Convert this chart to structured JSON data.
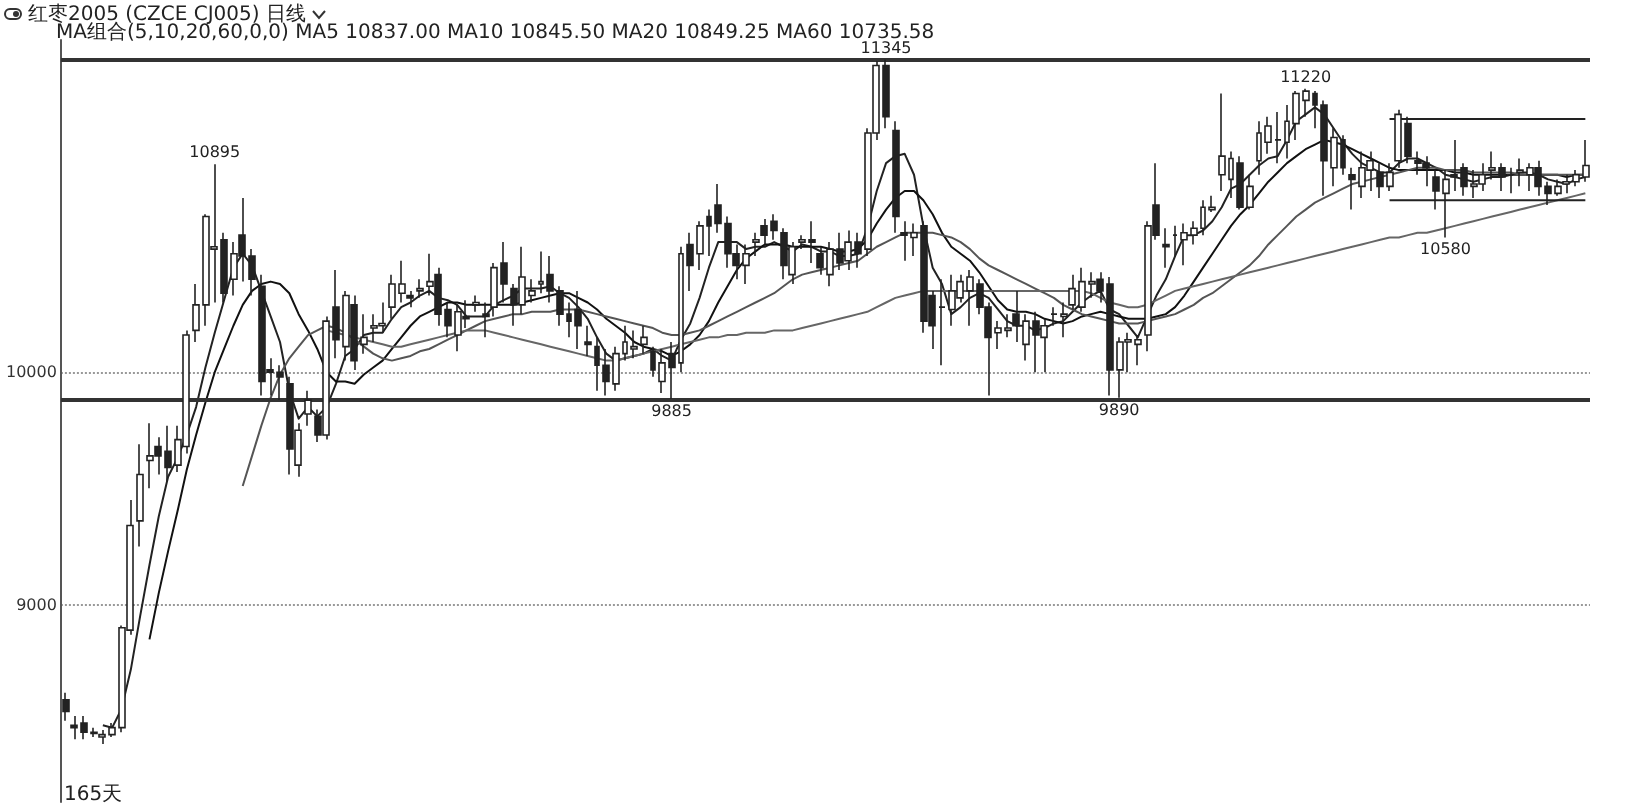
{
  "chart_data": {
    "type": "candlestick",
    "title": "红枣2005 (CZCE CJ005)  日线",
    "subtitle": "MA组合(5,10,20,60,0,0)  MA5 10837.00  MA10 10845.50  MA20 10849.25  MA60 10735.58",
    "categories": [
      null,
      null,
      null,
      null,
      null,
      null,
      null,
      null,
      null,
      null,
      null,
      null,
      null,
      null,
      null,
      null,
      null,
      null,
      null,
      null,
      null,
      null,
      null,
      null,
      null,
      null,
      null,
      null,
      null,
      null,
      null,
      null,
      null,
      null,
      null,
      null,
      null,
      null,
      null,
      null,
      null,
      null,
      null,
      null,
      null,
      null,
      null,
      null,
      null,
      null,
      null,
      null,
      null,
      null,
      null,
      null,
      null,
      null,
      null,
      null,
      null,
      null,
      null,
      null,
      null,
      null,
      null,
      null,
      null,
      null,
      null,
      null,
      null,
      null,
      null,
      null,
      null,
      null,
      null,
      null,
      null,
      null,
      null,
      null,
      null,
      null,
      null,
      null,
      null,
      null,
      null,
      null,
      null,
      null,
      null,
      null,
      null,
      null,
      null,
      null,
      null,
      null,
      null,
      null,
      null,
      null,
      null,
      null,
      null,
      null,
      null,
      null,
      null,
      null,
      null,
      null,
      null,
      null,
      null,
      null,
      null,
      null,
      null,
      null,
      null,
      null,
      null,
      null,
      null,
      null,
      null,
      null,
      null,
      null,
      null,
      null,
      null,
      null,
      null,
      null,
      null,
      null,
      null,
      null,
      null,
      null,
      null,
      null,
      null,
      null,
      null,
      null,
      null,
      null,
      null,
      null,
      null,
      null,
      null,
      null,
      null,
      null,
      null,
      null
    ],
    "color": "#222222",
    "ohlc": [
      [
        8590,
        8620,
        8500,
        8540
      ],
      [
        8480,
        8520,
        8420,
        8470
      ],
      [
        8490,
        8520,
        8420,
        8450
      ],
      [
        8450,
        8470,
        8430,
        8445
      ],
      [
        8430,
        8460,
        8400,
        8440
      ],
      [
        8440,
        8490,
        8430,
        8470
      ],
      [
        8470,
        8910,
        8450,
        8900
      ],
      [
        8890,
        9450,
        8870,
        9340
      ],
      [
        9360,
        9690,
        9250,
        9560
      ],
      [
        9620,
        9780,
        9500,
        9640
      ],
      [
        9680,
        9720,
        9560,
        9640
      ],
      [
        9660,
        9770,
        9530,
        9590
      ],
      [
        9600,
        9770,
        9570,
        9710
      ],
      [
        9680,
        10180,
        9650,
        10160
      ],
      [
        10180,
        10380,
        10130,
        10290
      ],
      [
        10290,
        10680,
        10200,
        10670
      ],
      [
        10530,
        10895,
        10300,
        10540
      ],
      [
        10570,
        10600,
        10300,
        10340
      ],
      [
        10400,
        10560,
        10330,
        10510
      ],
      [
        10590,
        10750,
        10390,
        10500
      ],
      [
        10500,
        10530,
        10330,
        10400
      ],
      [
        10370,
        10420,
        9900,
        9960
      ],
      [
        10010,
        10060,
        9900,
        10000
      ],
      [
        10000,
        10030,
        9880,
        9980
      ],
      [
        9950,
        9980,
        9560,
        9670
      ],
      [
        9600,
        9780,
        9550,
        9750
      ],
      [
        9820,
        9920,
        9770,
        9880
      ],
      [
        9810,
        9840,
        9700,
        9730
      ],
      [
        9730,
        10240,
        9710,
        10220
      ],
      [
        10280,
        10440,
        10060,
        10140
      ],
      [
        10110,
        10350,
        10050,
        10330
      ],
      [
        10290,
        10330,
        10010,
        10050
      ],
      [
        10120,
        10250,
        10080,
        10150
      ],
      [
        10190,
        10250,
        10130,
        10200
      ],
      [
        10200,
        10300,
        10170,
        10210
      ],
      [
        10280,
        10420,
        10230,
        10380
      ],
      [
        10340,
        10480,
        10300,
        10380
      ],
      [
        10330,
        10350,
        10280,
        10320
      ],
      [
        10350,
        10400,
        10320,
        10360
      ],
      [
        10370,
        10510,
        10330,
        10390
      ],
      [
        10420,
        10450,
        10200,
        10250
      ],
      [
        10270,
        10300,
        10150,
        10200
      ],
      [
        10160,
        10290,
        10090,
        10260
      ],
      [
        10240,
        10310,
        10190,
        10230
      ],
      [
        10290,
        10330,
        10260,
        10300
      ],
      [
        10250,
        10300,
        10150,
        10240
      ],
      [
        10280,
        10470,
        10240,
        10450
      ],
      [
        10470,
        10560,
        10300,
        10380
      ],
      [
        10360,
        10380,
        10200,
        10290
      ],
      [
        10290,
        10540,
        10250,
        10410
      ],
      [
        10330,
        10400,
        10300,
        10350
      ],
      [
        10380,
        10520,
        10340,
        10390
      ],
      [
        10420,
        10500,
        10300,
        10350
      ],
      [
        10350,
        10370,
        10200,
        10250
      ],
      [
        10250,
        10300,
        10150,
        10220
      ],
      [
        10270,
        10350,
        10100,
        10200
      ],
      [
        10130,
        10200,
        10070,
        10120
      ],
      [
        10110,
        10150,
        9920,
        10030
      ],
      [
        10030,
        10100,
        9900,
        9960
      ],
      [
        9950,
        10110,
        9920,
        10080
      ],
      [
        10080,
        10200,
        10050,
        10130
      ],
      [
        10100,
        10180,
        10060,
        10110
      ],
      [
        10120,
        10200,
        10080,
        10150
      ],
      [
        10090,
        10110,
        9980,
        10010
      ],
      [
        9960,
        10100,
        9910,
        10040
      ],
      [
        10080,
        10130,
        9885,
        10020
      ],
      [
        10040,
        10540,
        10000,
        10510
      ],
      [
        10550,
        10600,
        10350,
        10460
      ],
      [
        10510,
        10650,
        10440,
        10630
      ],
      [
        10670,
        10700,
        10500,
        10630
      ],
      [
        10720,
        10810,
        10600,
        10640
      ],
      [
        10640,
        10670,
        10450,
        10510
      ],
      [
        10510,
        10550,
        10400,
        10460
      ],
      [
        10460,
        10550,
        10380,
        10510
      ],
      [
        10560,
        10600,
        10500,
        10570
      ],
      [
        10630,
        10660,
        10550,
        10590
      ],
      [
        10650,
        10680,
        10570,
        10610
      ],
      [
        10600,
        10620,
        10400,
        10460
      ],
      [
        10420,
        10560,
        10380,
        10540
      ],
      [
        10560,
        10590,
        10530,
        10570
      ],
      [
        10570,
        10650,
        10470,
        10560
      ],
      [
        10510,
        10540,
        10420,
        10450
      ],
      [
        10420,
        10560,
        10370,
        10530
      ],
      [
        10530,
        10600,
        10440,
        10470
      ],
      [
        10480,
        10610,
        10440,
        10560
      ],
      [
        10560,
        10600,
        10450,
        10510
      ],
      [
        10530,
        11050,
        10500,
        11030
      ],
      [
        11030,
        11340,
        11000,
        11320
      ],
      [
        11320,
        11345,
        11050,
        11100
      ],
      [
        11040,
        11080,
        10600,
        10670
      ],
      [
        10600,
        10650,
        10480,
        10590
      ],
      [
        10580,
        10640,
        10500,
        10600
      ],
      [
        10630,
        10650,
        10170,
        10220
      ],
      [
        10330,
        10350,
        10100,
        10200
      ],
      [
        10280,
        10400,
        10030,
        10280
      ],
      [
        10270,
        10420,
        10200,
        10350
      ],
      [
        10320,
        10420,
        10300,
        10390
      ],
      [
        10350,
        10440,
        10200,
        10410
      ],
      [
        10380,
        10400,
        10250,
        10280
      ],
      [
        10280,
        10300,
        9900,
        10150
      ],
      [
        10170,
        10220,
        10100,
        10190
      ],
      [
        10180,
        10250,
        10150,
        10190
      ],
      [
        10250,
        10350,
        10130,
        10200
      ],
      [
        10120,
        10250,
        10050,
        10220
      ],
      [
        10220,
        10260,
        10000,
        10160
      ],
      [
        10150,
        10230,
        10000,
        10200
      ],
      [
        10250,
        10280,
        10200,
        10250
      ],
      [
        10240,
        10300,
        10150,
        10250
      ],
      [
        10290,
        10420,
        10270,
        10360
      ],
      [
        10280,
        10450,
        10260,
        10390
      ],
      [
        10380,
        10430,
        10320,
        10390
      ],
      [
        10400,
        10430,
        10300,
        10350
      ],
      [
        10380,
        10410,
        9900,
        10010
      ],
      [
        10010,
        10150,
        9890,
        10130
      ],
      [
        10130,
        10170,
        10000,
        10140
      ],
      [
        10120,
        10160,
        10030,
        10140
      ],
      [
        10160,
        10650,
        10090,
        10630
      ],
      [
        10720,
        10900,
        10570,
        10590
      ],
      [
        10550,
        10620,
        10450,
        10540
      ],
      [
        10590,
        10630,
        10500,
        10590
      ],
      [
        10570,
        10640,
        10460,
        10600
      ],
      [
        10590,
        10650,
        10550,
        10620
      ],
      [
        10620,
        10740,
        10590,
        10710
      ],
      [
        10700,
        10760,
        10690,
        10710
      ],
      [
        10850,
        11200,
        10780,
        10930
      ],
      [
        10830,
        10950,
        10750,
        10920
      ],
      [
        10900,
        10930,
        10700,
        10710
      ],
      [
        10710,
        10850,
        10700,
        10800
      ],
      [
        10910,
        11080,
        10850,
        11030
      ],
      [
        10990,
        11100,
        10940,
        11060
      ],
      [
        11000,
        11120,
        10900,
        11000
      ],
      [
        10990,
        11150,
        10920,
        11080
      ],
      [
        11070,
        11210,
        11000,
        11200
      ],
      [
        11170,
        11220,
        11100,
        11210
      ],
      [
        11200,
        11210,
        11050,
        11150
      ],
      [
        11150,
        11170,
        10760,
        10910
      ],
      [
        10880,
        11050,
        10800,
        11010
      ],
      [
        11000,
        11020,
        10850,
        10880
      ],
      [
        10850,
        10880,
        10700,
        10830
      ],
      [
        10800,
        10950,
        10750,
        10880
      ],
      [
        10870,
        10950,
        10780,
        10910
      ],
      [
        10860,
        10900,
        10750,
        10800
      ],
      [
        10800,
        10900,
        10780,
        10860
      ],
      [
        10910,
        11130,
        10880,
        11110
      ],
      [
        11070,
        11100,
        10900,
        10930
      ],
      [
        10910,
        10950,
        10850,
        10900
      ],
      [
        10900,
        10930,
        10800,
        10880
      ],
      [
        10840,
        10870,
        10700,
        10780
      ],
      [
        10770,
        10870,
        10580,
        10830
      ],
      [
        10850,
        11000,
        10780,
        10840
      ],
      [
        10880,
        10900,
        10760,
        10800
      ],
      [
        10800,
        10870,
        10750,
        10810
      ],
      [
        10810,
        10900,
        10780,
        10850
      ],
      [
        10870,
        10950,
        10830,
        10880
      ],
      [
        10880,
        10900,
        10780,
        10840
      ],
      [
        10850,
        10880,
        10770,
        10850
      ],
      [
        10860,
        10920,
        10800,
        10870
      ],
      [
        10850,
        10900,
        10780,
        10880
      ],
      [
        10880,
        10910,
        10760,
        10800
      ],
      [
        10800,
        10820,
        10720,
        10770
      ],
      [
        10770,
        10830,
        10760,
        10800
      ],
      [
        10810,
        10850,
        10770,
        10820
      ],
      [
        10820,
        10870,
        10800,
        10850
      ],
      [
        10840,
        11000,
        10820,
        10890
      ]
    ],
    "series": [
      {
        "type": "line",
        "color": "#222222",
        "values": [
          null,
          null,
          null,
          null,
          8480,
          8470,
          8550,
          8720,
          8950,
          9170,
          9380,
          9550,
          9630,
          9730,
          9850,
          10020,
          10170,
          10310,
          10450,
          10510,
          10460,
          10350,
          10240,
          10130,
          9920,
          9800,
          9850,
          9810,
          9850,
          9950,
          10070,
          10100,
          10160,
          10170,
          10170,
          10230,
          10280,
          10300,
          10330,
          10350,
          10320,
          10310,
          10290,
          10240,
          10240,
          10240,
          10290,
          10310,
          10330,
          10360,
          10360,
          10360,
          10370,
          10340,
          10320,
          10280,
          10230,
          10150,
          10080,
          10050,
          10060,
          10070,
          10080,
          10100,
          10070,
          10050,
          10140,
          10210,
          10320,
          10450,
          10560,
          10560,
          10560,
          10530,
          10540,
          10540,
          10560,
          10540,
          10520,
          10550,
          10540,
          10520,
          10520,
          10500,
          10500,
          10510,
          10620,
          10780,
          10900,
          10930,
          10940,
          10850,
          10630,
          10450,
          10380,
          10250,
          10280,
          10320,
          10340,
          10320,
          10270,
          10220,
          10200,
          10200,
          10180,
          10190,
          10210,
          10220,
          10260,
          10300,
          10330,
          10350,
          10270,
          10250,
          10200,
          10150,
          10240,
          10330,
          10400,
          10500,
          10590,
          10590,
          10610,
          10650,
          10710,
          10790,
          10810,
          10850,
          10890,
          10920,
          10930,
          11000,
          11080,
          11110,
          11140,
          11110,
          11050,
          10990,
          10940,
          10900,
          10880,
          10860,
          10860,
          10900,
          10920,
          10920,
          10900,
          10880,
          10850,
          10840,
          10830,
          10820,
          10830,
          10840,
          10840,
          10850,
          10860,
          10860,
          10850,
          10830,
          10820,
          10810,
          10830,
          10840
        ]
      },
      {
        "type": "line",
        "color": "#111111",
        "values": [
          null,
          null,
          null,
          null,
          null,
          null,
          null,
          null,
          null,
          8850,
          9050,
          9230,
          9400,
          9580,
          9730,
          9870,
          10000,
          10100,
          10200,
          10290,
          10350,
          10380,
          10390,
          10380,
          10340,
          10250,
          10180,
          10100,
          10000,
          9960,
          9960,
          9950,
          9990,
          10020,
          10050,
          10100,
          10150,
          10200,
          10240,
          10260,
          10280,
          10300,
          10300,
          10290,
          10290,
          10290,
          10290,
          10290,
          10290,
          10300,
          10310,
          10320,
          10330,
          10340,
          10340,
          10320,
          10300,
          10270,
          10230,
          10200,
          10170,
          10130,
          10110,
          10100,
          10090,
          10070,
          10090,
          10120,
          10160,
          10220,
          10300,
          10370,
          10440,
          10490,
          10520,
          10550,
          10550,
          10550,
          10540,
          10540,
          10540,
          10540,
          10530,
          10520,
          10520,
          10530,
          10570,
          10640,
          10700,
          10750,
          10780,
          10780,
          10740,
          10680,
          10600,
          10540,
          10510,
          10480,
          10430,
          10370,
          10310,
          10270,
          10260,
          10260,
          10250,
          10230,
          10220,
          10210,
          10220,
          10240,
          10250,
          10260,
          10250,
          10240,
          10230,
          10230,
          10230,
          10240,
          10250,
          10280,
          10330,
          10390,
          10450,
          10510,
          10570,
          10630,
          10680,
          10720,
          10770,
          10820,
          10860,
          10900,
          10930,
          10960,
          10980,
          11000,
          10990,
          10980,
          10960,
          10940,
          10920,
          10900,
          10880,
          10870,
          10870,
          10870,
          10870,
          10870,
          10870,
          10860,
          10860,
          10850,
          10850,
          10850,
          10850,
          10850,
          10850,
          10850,
          10850,
          10850,
          10850,
          10840,
          10850,
          10850
        ]
      },
      {
        "type": "line",
        "color": "#555555",
        "values": [
          null,
          null,
          null,
          null,
          null,
          null,
          null,
          null,
          null,
          null,
          null,
          null,
          null,
          null,
          null,
          null,
          null,
          null,
          null,
          9510,
          9640,
          9770,
          9890,
          9990,
          10060,
          10110,
          10160,
          10180,
          10200,
          10190,
          10170,
          10140,
          10110,
          10080,
          10060,
          10050,
          10060,
          10070,
          10090,
          10100,
          10120,
          10140,
          10160,
          10180,
          10200,
          10220,
          10230,
          10240,
          10250,
          10250,
          10260,
          10260,
          10260,
          10270,
          10270,
          10270,
          10260,
          10250,
          10240,
          10230,
          10220,
          10210,
          10200,
          10190,
          10170,
          10160,
          10160,
          10170,
          10180,
          10200,
          10220,
          10240,
          10260,
          10280,
          10300,
          10320,
          10340,
          10370,
          10400,
          10420,
          10430,
          10440,
          10450,
          10460,
          10470,
          10480,
          10510,
          10540,
          10560,
          10580,
          10600,
          10600,
          10600,
          10600,
          10590,
          10580,
          10560,
          10530,
          10490,
          10460,
          10440,
          10420,
          10400,
          10380,
          10360,
          10340,
          10320,
          10290,
          10270,
          10250,
          10240,
          10230,
          10220,
          10210,
          10210,
          10210,
          10220,
          10230,
          10240,
          10250,
          10270,
          10290,
          10320,
          10340,
          10370,
          10400,
          10430,
          10460,
          10500,
          10550,
          10590,
          10630,
          10670,
          10700,
          10730,
          10750,
          10770,
          10790,
          10810,
          10820,
          10830,
          10840,
          10850,
          10860,
          10870,
          10880,
          10880,
          10880,
          10870,
          10870,
          10870,
          10860,
          10860,
          10860,
          10860,
          10860,
          10850,
          10850,
          10850,
          10850,
          10850,
          10850,
          10850,
          10850
        ]
      },
      {
        "type": "line",
        "color": "#666666",
        "values": [
          null,
          null,
          null,
          null,
          null,
          null,
          null,
          null,
          null,
          null,
          null,
          null,
          null,
          null,
          null,
          null,
          null,
          null,
          null,
          null,
          null,
          null,
          null,
          null,
          null,
          null,
          null,
          null,
          10180,
          10170,
          10160,
          10150,
          10140,
          10130,
          10120,
          10110,
          10110,
          10120,
          10130,
          10140,
          10150,
          10160,
          10170,
          10180,
          10180,
          10180,
          10170,
          10160,
          10150,
          10140,
          10130,
          10120,
          10110,
          10100,
          10090,
          10080,
          10070,
          10060,
          10050,
          10050,
          10060,
          10070,
          10080,
          10090,
          10100,
          10110,
          10120,
          10130,
          10140,
          10150,
          10150,
          10160,
          10160,
          10170,
          10170,
          10170,
          10180,
          10180,
          10180,
          10190,
          10200,
          10210,
          10220,
          10230,
          10240,
          10250,
          10260,
          10280,
          10300,
          10320,
          10330,
          10340,
          10350,
          10350,
          10350,
          10350,
          10350,
          10350,
          10350,
          10350,
          10350,
          10350,
          10350,
          10350,
          10350,
          10350,
          10350,
          10350,
          10350,
          10350,
          10340,
          10320,
          10300,
          10290,
          10280,
          10280,
          10290,
          10310,
          10330,
          10350,
          10360,
          10370,
          10380,
          10390,
          10400,
          10410,
          10420,
          10430,
          10440,
          10450,
          10460,
          10470,
          10480,
          10490,
          10500,
          10510,
          10520,
          10530,
          10540,
          10550,
          10560,
          10570,
          10580,
          10580,
          10590,
          10600,
          10600,
          10610,
          10620,
          10630,
          10640,
          10650,
          10660,
          10670,
          10680,
          10690,
          10700,
          10710,
          10720,
          10730,
          10740,
          10750,
          10760,
          10770
        ]
      },
      {
        "type": "line",
        "color": "#222222",
        "values": [
          null,
          null,
          null,
          null,
          null,
          null,
          null,
          null,
          null,
          null,
          null,
          null,
          null,
          null,
          null,
          null,
          null,
          null,
          null,
          null,
          null,
          null,
          null,
          null,
          null,
          null,
          null,
          null,
          null,
          null,
          null,
          null,
          null,
          null,
          null,
          null,
          null,
          null,
          null,
          null,
          null,
          null,
          null,
          null,
          null,
          null,
          null,
          null,
          null,
          null,
          null,
          null,
          null,
          null,
          null,
          null,
          null,
          null,
          null,
          null,
          null,
          null,
          null,
          null,
          null,
          null,
          null,
          null,
          null,
          null,
          null,
          null,
          null,
          null,
          null,
          null,
          null,
          null,
          null,
          null,
          null,
          null,
          null,
          null,
          null,
          null,
          null,
          null,
          null,
          null,
          null,
          null,
          null,
          null,
          null,
          null,
          null,
          null,
          null,
          null,
          null,
          null,
          null,
          null,
          null,
          null,
          null,
          null,
          null,
          null,
          null,
          null,
          null,
          null,
          null,
          null,
          null,
          null,
          null,
          null,
          null,
          null,
          null,
          null,
          null,
          null,
          null,
          null,
          null,
          null,
          null,
          null,
          null,
          null,
          null,
          null,
          null,
          null,
          null,
          null,
          null,
          null,
          11090,
          11090,
          11090,
          11090,
          11090,
          11090,
          11090,
          11090,
          11090,
          11090,
          11090,
          11090,
          11090,
          11090,
          11090,
          11090,
          11090,
          11090,
          11090,
          11090,
          11090,
          11090
        ]
      },
      {
        "type": "line",
        "color": "#222222",
        "values": [
          null,
          null,
          null,
          null,
          null,
          null,
          null,
          null,
          null,
          null,
          null,
          null,
          null,
          null,
          null,
          null,
          null,
          null,
          null,
          null,
          null,
          null,
          null,
          null,
          null,
          null,
          null,
          null,
          null,
          null,
          null,
          null,
          null,
          null,
          null,
          null,
          null,
          null,
          null,
          null,
          null,
          null,
          null,
          null,
          null,
          null,
          null,
          null,
          null,
          null,
          null,
          null,
          null,
          null,
          null,
          null,
          null,
          null,
          null,
          null,
          null,
          null,
          null,
          null,
          null,
          null,
          null,
          null,
          null,
          null,
          null,
          null,
          null,
          null,
          null,
          null,
          null,
          null,
          null,
          null,
          null,
          null,
          null,
          null,
          null,
          null,
          null,
          null,
          null,
          null,
          null,
          null,
          null,
          null,
          null,
          null,
          null,
          null,
          null,
          null,
          null,
          null,
          null,
          null,
          null,
          null,
          null,
          null,
          null,
          null,
          null,
          null,
          null,
          null,
          null,
          null,
          null,
          null,
          null,
          null,
          null,
          null,
          null,
          null,
          null,
          null,
          null,
          null,
          null,
          null,
          null,
          null,
          null,
          null,
          null,
          null,
          null,
          null,
          null,
          null,
          null,
          null,
          10740,
          10740,
          10740,
          10740,
          10740,
          10740,
          10740,
          10740,
          10740,
          10740,
          10740,
          10740,
          10740,
          10740,
          10740,
          10740,
          10740,
          10740,
          10740,
          10740,
          10740,
          10740
        ]
      }
    ],
    "ref_lines": [
      {
        "axis": "y",
        "value": 11345,
        "color": "#333333"
      },
      {
        "axis": "y",
        "value": 9885,
        "color": "#333333"
      }
    ],
    "annotations": [
      {
        "text": "10895",
        "y": 10895
      },
      {
        "text": "11345",
        "y": 11345
      },
      {
        "text": "9885",
        "y": 9885
      },
      {
        "text": "9890",
        "y": 9890
      },
      {
        "text": "11220",
        "y": 11220
      },
      {
        "text": "10580",
        "y": 10580
      },
      "165天"
    ],
    "ylim": [
      8150,
      11430
    ],
    "yticks": [
      9000,
      10000
    ],
    "grid": "y",
    "tick_labels": "y",
    "marker": "none",
    "line_style": "solid"
  }
}
